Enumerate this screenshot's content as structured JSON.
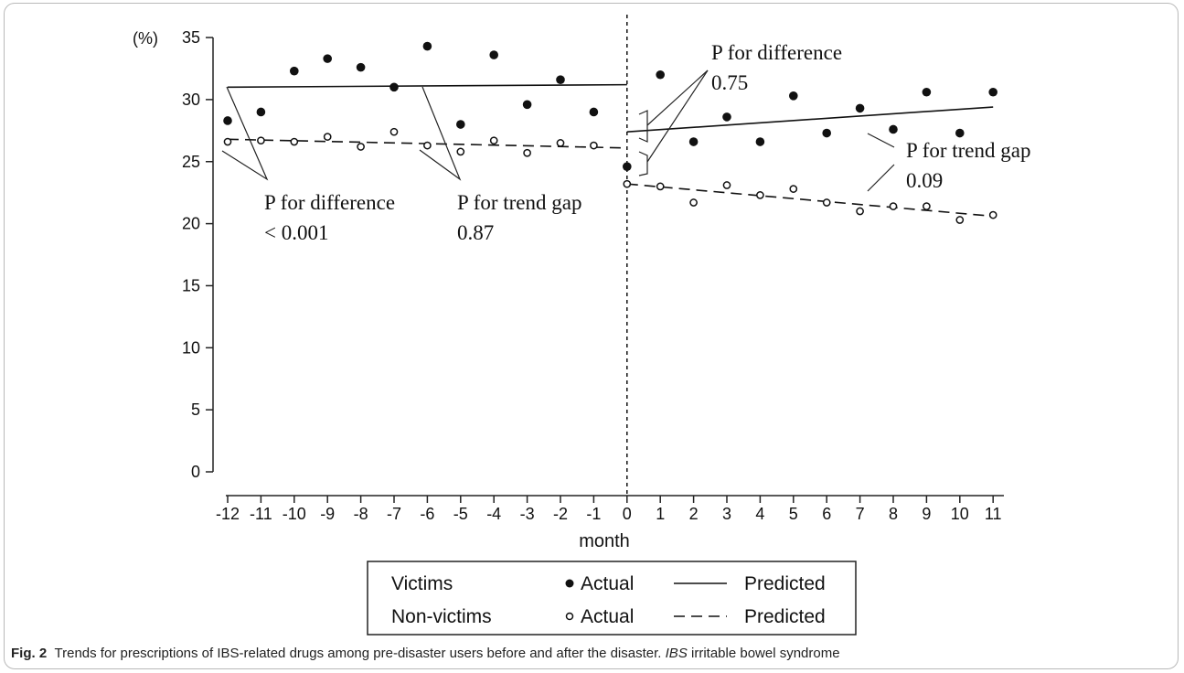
{
  "chart_data": {
    "type": "scatter",
    "x": [
      -12,
      -11,
      -10,
      -9,
      -8,
      -7,
      -6,
      -5,
      -4,
      -3,
      -2,
      -1,
      0,
      1,
      2,
      3,
      4,
      5,
      6,
      7,
      8,
      9,
      10,
      11
    ],
    "xlabel": "month",
    "ylabel": "(%)",
    "ylim": [
      0,
      35
    ],
    "yticks": [
      0,
      5,
      10,
      15,
      20,
      25,
      30,
      35
    ],
    "xticks": [
      -12,
      -11,
      -10,
      -9,
      -8,
      -7,
      -6,
      -5,
      -4,
      -3,
      -2,
      -1,
      0,
      1,
      2,
      3,
      4,
      5,
      6,
      7,
      8,
      9,
      10,
      11
    ],
    "series": [
      {
        "name": "Victims Actual",
        "marker": "filled",
        "values": [
          28.3,
          29.0,
          32.3,
          33.3,
          32.6,
          31.0,
          34.3,
          28.0,
          33.6,
          29.6,
          31.6,
          29.0,
          24.6,
          32.0,
          26.6,
          28.6,
          26.6,
          30.3,
          27.3,
          29.3,
          27.6,
          30.6,
          27.3,
          30.6
        ]
      },
      {
        "name": "Non-victims Actual",
        "marker": "open",
        "values": [
          26.6,
          26.7,
          26.6,
          27.0,
          26.2,
          27.4,
          26.3,
          25.8,
          26.7,
          25.7,
          26.5,
          26.3,
          23.2,
          23.0,
          21.7,
          23.1,
          22.3,
          22.8,
          21.7,
          21.0,
          21.4,
          21.4,
          20.3,
          20.7
        ]
      }
    ],
    "predicted": [
      {
        "name": "Victims Predicted",
        "style": "solid",
        "segments": [
          [
            [
              -12,
              31.0
            ],
            [
              0,
              31.2
            ]
          ],
          [
            [
              0,
              27.4
            ],
            [
              11,
              29.4
            ]
          ]
        ]
      },
      {
        "name": "Non-victims Predicted",
        "style": "dashed",
        "segments": [
          [
            [
              -12,
              26.8
            ],
            [
              0,
              26.1
            ]
          ],
          [
            [
              0,
              23.2
            ],
            [
              11,
              20.6
            ]
          ]
        ]
      }
    ],
    "annotations": [
      {
        "id": "pre-diff",
        "line1": "P for difference",
        "line2": "< 0.001"
      },
      {
        "id": "pre-trend",
        "line1": "P for trend gap",
        "line2": "0.87"
      },
      {
        "id": "post-diff",
        "line1": "P for difference",
        "line2": "0.75"
      },
      {
        "id": "post-trend",
        "line1": "P for trend gap",
        "line2": "0.09"
      }
    ],
    "legend": {
      "placement": "bottom",
      "rows": [
        {
          "group": "Victims",
          "actual": "Actual",
          "predicted": "Predicted"
        },
        {
          "group": "Non-victims",
          "actual": "Actual",
          "predicted": "Predicted"
        }
      ]
    },
    "disaster_marker_x": 0
  },
  "caption": {
    "label": "Fig. 2",
    "text_a": "Trends for prescriptions of IBS-related drugs among pre-disaster users before and after the disaster.",
    "abbr": "IBS",
    "text_b": "irritable bowel syndrome"
  }
}
